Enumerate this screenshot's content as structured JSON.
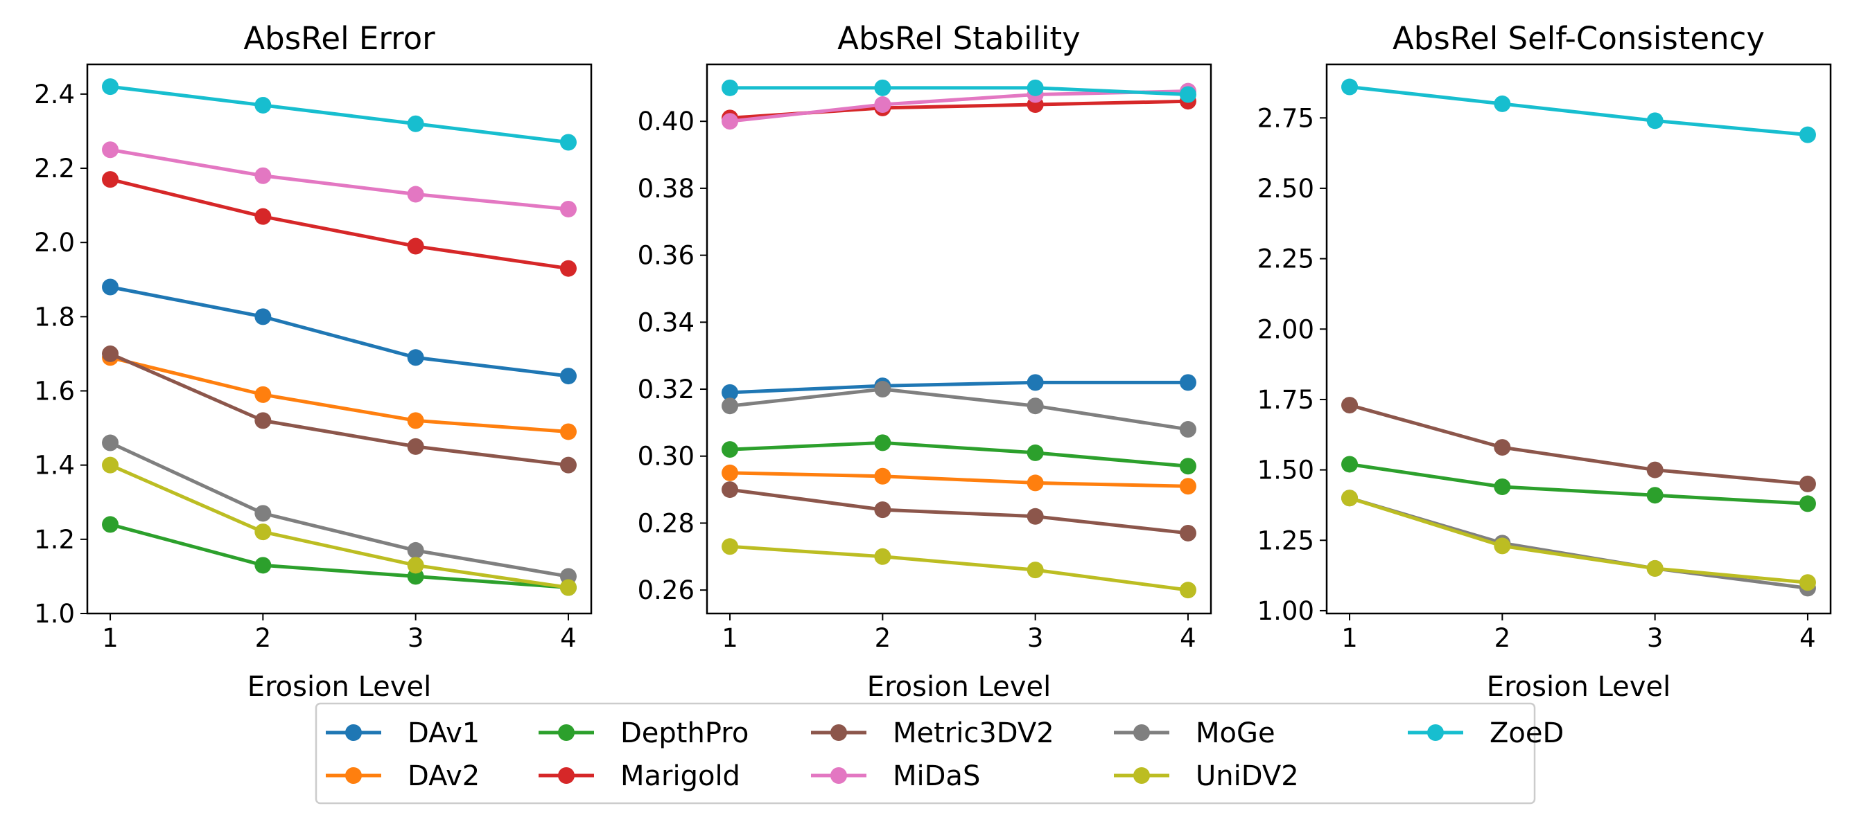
{
  "chart_data": {
    "type": "line",
    "x": [
      1,
      2,
      3,
      4
    ],
    "legend": {
      "placement": "bottom-center",
      "entries": [
        {
          "name": "DAv1",
          "color": "#1f77b4"
        },
        {
          "name": "DAv2",
          "color": "#ff7f0e"
        },
        {
          "name": "DepthPro",
          "color": "#2ca02c"
        },
        {
          "name": "Marigold",
          "color": "#d62728"
        },
        {
          "name": "Metric3DV2",
          "color": "#8c564b"
        },
        {
          "name": "MiDaS",
          "color": "#e377c2"
        },
        {
          "name": "MoGe",
          "color": "#7f7f7f"
        },
        {
          "name": "UniDV2",
          "color": "#bcbd22"
        },
        {
          "name": "ZoeD",
          "color": "#17becf"
        }
      ]
    },
    "subplots": [
      {
        "title": "AbsRel Error",
        "xlabel": "Erosion Level",
        "ylabel": "",
        "xlim": [
          0.85,
          4.15
        ],
        "ylim": [
          1.0,
          2.48
        ],
        "yticks": [
          1.0,
          1.2,
          1.4,
          1.6,
          1.8,
          2.0,
          2.2,
          2.4
        ],
        "ytick_labels": [
          "1.0",
          "1.2",
          "1.4",
          "1.6",
          "1.8",
          "2.0",
          "2.2",
          "2.4"
        ],
        "series": [
          {
            "name": "DAv1",
            "values": [
              1.88,
              1.8,
              1.69,
              1.64
            ]
          },
          {
            "name": "DAv2",
            "values": [
              1.69,
              1.59,
              1.52,
              1.49
            ]
          },
          {
            "name": "DepthPro",
            "values": [
              1.24,
              1.13,
              1.1,
              1.07
            ]
          },
          {
            "name": "Marigold",
            "values": [
              2.17,
              2.07,
              1.99,
              1.93
            ]
          },
          {
            "name": "Metric3DV2",
            "values": [
              1.7,
              1.52,
              1.45,
              1.4
            ]
          },
          {
            "name": "MiDaS",
            "values": [
              2.25,
              2.18,
              2.13,
              2.09
            ]
          },
          {
            "name": "MoGe",
            "values": [
              1.46,
              1.27,
              1.17,
              1.1
            ]
          },
          {
            "name": "UniDV2",
            "values": [
              1.4,
              1.22,
              1.13,
              1.07
            ]
          },
          {
            "name": "ZoeD",
            "values": [
              2.42,
              2.37,
              2.32,
              2.27
            ]
          }
        ]
      },
      {
        "title": "AbsRel Stability",
        "xlabel": "Erosion Level",
        "ylabel": "",
        "xlim": [
          0.85,
          4.15
        ],
        "ylim": [
          0.253,
          0.417
        ],
        "yticks": [
          0.26,
          0.28,
          0.3,
          0.32,
          0.34,
          0.36,
          0.38,
          0.4
        ],
        "ytick_labels": [
          "0.26",
          "0.28",
          "0.30",
          "0.32",
          "0.34",
          "0.36",
          "0.38",
          "0.40"
        ],
        "series": [
          {
            "name": "DAv1",
            "values": [
              0.319,
              0.321,
              0.322,
              0.322
            ]
          },
          {
            "name": "DAv2",
            "values": [
              0.295,
              0.294,
              0.292,
              0.291
            ]
          },
          {
            "name": "DepthPro",
            "values": [
              0.302,
              0.304,
              0.301,
              0.297
            ]
          },
          {
            "name": "Marigold",
            "values": [
              0.401,
              0.404,
              0.405,
              0.406
            ]
          },
          {
            "name": "Metric3DV2",
            "values": [
              0.29,
              0.284,
              0.282,
              0.277
            ]
          },
          {
            "name": "MiDaS",
            "values": [
              0.4,
              0.405,
              0.408,
              0.409
            ]
          },
          {
            "name": "MoGe",
            "values": [
              0.315,
              0.32,
              0.315,
              0.308
            ]
          },
          {
            "name": "UniDV2",
            "values": [
              0.273,
              0.27,
              0.266,
              0.26
            ]
          },
          {
            "name": "ZoeD",
            "values": [
              0.41,
              0.41,
              0.41,
              0.408
            ]
          }
        ]
      },
      {
        "title": "AbsRel Self-Consistency",
        "xlabel": "Erosion Level",
        "ylabel": "",
        "xlim": [
          0.85,
          4.15
        ],
        "ylim": [
          0.99,
          2.94
        ],
        "yticks": [
          1.0,
          1.25,
          1.5,
          1.75,
          2.0,
          2.25,
          2.5,
          2.75
        ],
        "ytick_labels": [
          "1.00",
          "1.25",
          "1.50",
          "1.75",
          "2.00",
          "2.25",
          "2.50",
          "2.75"
        ],
        "series": [
          {
            "name": "DepthPro",
            "values": [
              1.52,
              1.44,
              1.41,
              1.38
            ]
          },
          {
            "name": "Metric3DV2",
            "values": [
              1.73,
              1.58,
              1.5,
              1.45
            ]
          },
          {
            "name": "MoGe",
            "values": [
              1.4,
              1.24,
              1.15,
              1.08
            ]
          },
          {
            "name": "UniDV2",
            "values": [
              1.4,
              1.23,
              1.15,
              1.1
            ]
          },
          {
            "name": "ZoeD",
            "values": [
              2.86,
              2.8,
              2.74,
              2.69
            ]
          }
        ]
      }
    ]
  }
}
